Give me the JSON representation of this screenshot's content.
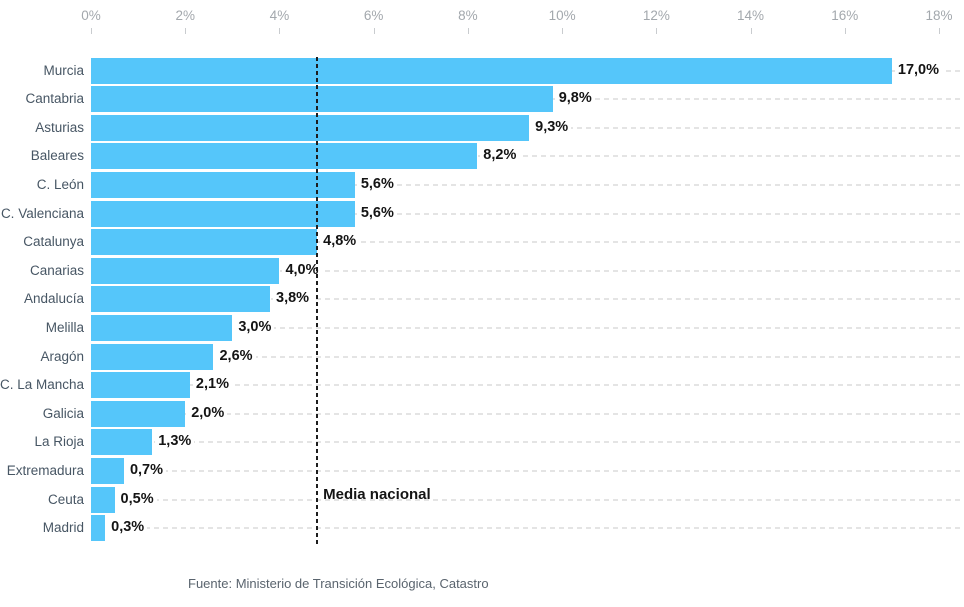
{
  "chart_data": {
    "type": "bar",
    "orientation": "horizontal",
    "categories": [
      "Murcia",
      "Cantabria",
      "Asturias",
      "Baleares",
      "C. León",
      "C. Valenciana",
      "Catalunya",
      "Canarias",
      "Andalucía",
      "Melilla",
      "Aragón",
      "C. La Mancha",
      "Galicia",
      "La Rioja",
      "Extremadura",
      "Ceuta",
      "Madrid"
    ],
    "values": [
      17.0,
      9.8,
      9.3,
      8.2,
      5.6,
      5.6,
      4.8,
      4.0,
      3.8,
      3.0,
      2.6,
      2.1,
      2.0,
      1.3,
      0.7,
      0.5,
      0.3
    ],
    "value_labels": [
      "17,0%",
      "9,8%",
      "9,3%",
      "8,2%",
      "5,6%",
      "5,6%",
      "4,8%",
      "4,0%",
      "3,8%",
      "3,0%",
      "2,6%",
      "2,1%",
      "2,0%",
      "1,3%",
      "0,7%",
      "0,5%",
      "0,3%"
    ],
    "x_axis": {
      "position": "top",
      "tick_labels": [
        "0%",
        "2%",
        "4%",
        "6%",
        "8%",
        "10%",
        "12%",
        "14%",
        "16%",
        "18%"
      ],
      "tick_values": [
        0,
        2,
        4,
        6,
        8,
        10,
        12,
        14,
        16,
        18
      ],
      "range": [
        0,
        18
      ]
    },
    "reference_line": {
      "value": 4.8,
      "label": "Media nacional"
    },
    "grid": "dashed-horizontal-per-row",
    "source": "Fuente: Ministerio de Transición Ecológica, Catastro",
    "colors": {
      "bar": "#55c6fa",
      "category_label": "#475664",
      "value_label": "#141414",
      "axis_label": "#a3a8ad",
      "gridline": "#e4e4e4",
      "reference_line": "#1d1d1d",
      "source_text": "#5a646e"
    }
  }
}
